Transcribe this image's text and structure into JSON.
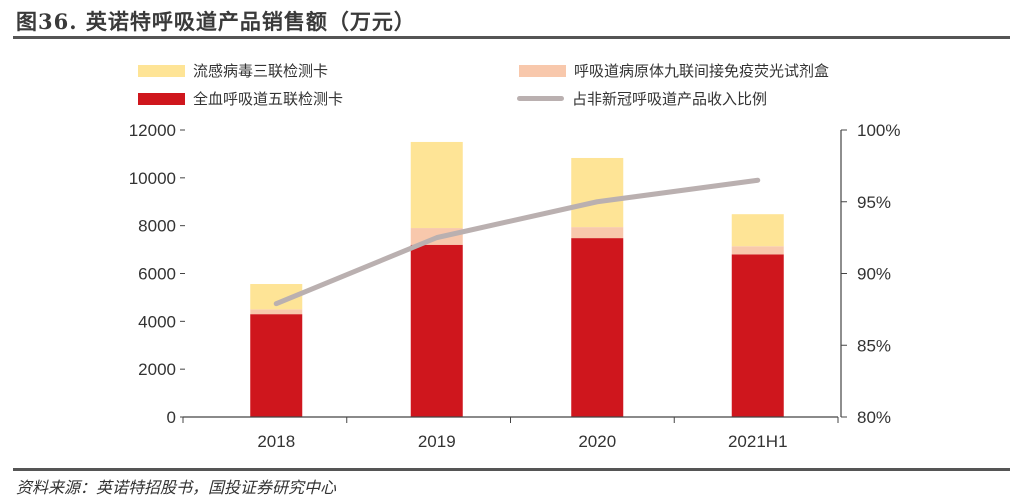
{
  "title": "图36. 英诺特呼吸道产品销售额（万元）",
  "source": "资料来源：英诺特招股书，国投证券研究中心",
  "chart_data": {
    "type": "bar",
    "stacked": true,
    "title": "图36. 英诺特呼吸道产品销售额（万元）",
    "categories": [
      "2018",
      "2019",
      "2020",
      "2021H1"
    ],
    "series": [
      {
        "name": "全血呼吸道五联检测卡",
        "type": "bar",
        "axis": "left",
        "color": "#cf161d",
        "values": [
          4300,
          7200,
          7480,
          6800
        ]
      },
      {
        "name": "呼吸道病原体九联间接免疫荧光试剂盒",
        "type": "bar",
        "axis": "left",
        "color": "#f8c8ac",
        "values": [
          200,
          700,
          460,
          340
        ]
      },
      {
        "name": "流感病毒三联检测卡",
        "type": "bar",
        "axis": "left",
        "color": "#fee496",
        "values": [
          1060,
          3600,
          2890,
          1340
        ]
      },
      {
        "name": "占非新冠呼吸道产品收入比例",
        "type": "line",
        "axis": "right",
        "color": "#bab0b0",
        "values": [
          87.9,
          92.5,
          95.0,
          96.5
        ]
      }
    ],
    "legend_order": [
      "流感病毒三联检测卡",
      "呼吸道病原体九联间接免疫荧光试剂盒",
      "全血呼吸道五联检测卡",
      "占非新冠呼吸道产品收入比例"
    ],
    "legend_position": "top",
    "ylim": [
      0,
      12000
    ],
    "yticks": [
      "0",
      "2000",
      "4000",
      "6000",
      "8000",
      "10000",
      "12000"
    ],
    "y2lim": [
      80,
      100
    ],
    "y2ticks": [
      "80%",
      "85%",
      "90%",
      "95%",
      "100%"
    ],
    "xlabel": "",
    "ylabel": "",
    "grid": false
  }
}
